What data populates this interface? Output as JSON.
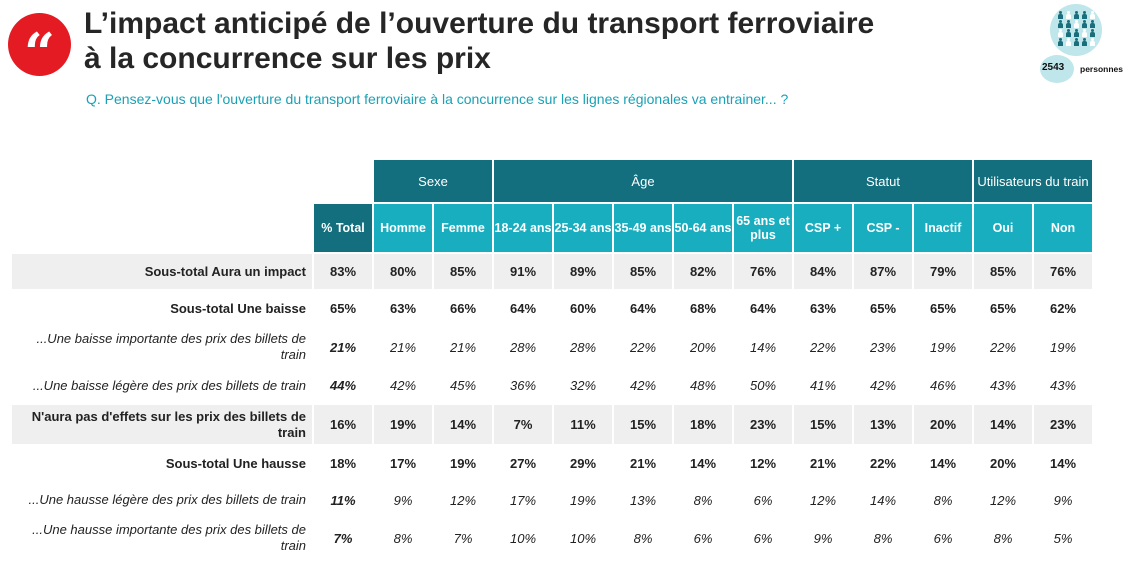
{
  "title_line1": "L’impact anticipé de l’ouverture du transport ferroviaire",
  "title_line2": "à la concurrence sur les prix",
  "subtitle": "Q. Pensez-vous que l'ouverture du transport ferroviaire à la concurrence sur les lignes régionales va entrainer... ?",
  "quote_glyph": "“",
  "respondents": {
    "count": "2543",
    "label": "personnes"
  },
  "colors": {
    "accent_red": "#e41b23",
    "dark_teal": "#136e7e",
    "light_teal": "#18aec0",
    "subtitle": "#1aa1b5",
    "row_shade": "#efefef"
  },
  "groups": [
    {
      "label": "Sexe",
      "span": 2
    },
    {
      "label": "Âge",
      "span": 5
    },
    {
      "label": "Statut",
      "span": 3
    },
    {
      "label": "Utilisateurs du train",
      "span": 2
    }
  ],
  "columns": [
    "% Total",
    "Homme",
    "Femme",
    "18-24 ans",
    "25-34 ans",
    "35-49 ans",
    "50-64 ans",
    "65 ans et plus",
    "CSP +",
    "CSP -",
    "Inactif",
    "Oui",
    "Non"
  ],
  "rows": [
    {
      "label": "Sous-total Aura un impact",
      "style": "bold",
      "shade": true,
      "values": [
        "83%",
        "80%",
        "85%",
        "91%",
        "89%",
        "85%",
        "82%",
        "76%",
        "84%",
        "87%",
        "79%",
        "85%",
        "76%"
      ]
    },
    {
      "label": "Sous-total Une baisse",
      "style": "bold",
      "shade": false,
      "values": [
        "65%",
        "63%",
        "66%",
        "64%",
        "60%",
        "64%",
        "68%",
        "64%",
        "63%",
        "65%",
        "65%",
        "65%",
        "62%"
      ]
    },
    {
      "label": "...Une baisse importante des prix des billets de train",
      "style": "ital",
      "shade": false,
      "values": [
        "21%",
        "21%",
        "21%",
        "28%",
        "28%",
        "22%",
        "20%",
        "14%",
        "22%",
        "23%",
        "19%",
        "22%",
        "19%"
      ]
    },
    {
      "label": "...Une baisse légère des prix des billets de train",
      "style": "ital",
      "shade": false,
      "values": [
        "44%",
        "42%",
        "45%",
        "36%",
        "32%",
        "42%",
        "48%",
        "50%",
        "41%",
        "42%",
        "46%",
        "43%",
        "43%"
      ]
    },
    {
      "label": "N'aura pas d'effets sur les prix des billets de train",
      "style": "bold",
      "shade": true,
      "values": [
        "16%",
        "19%",
        "14%",
        "7%",
        "11%",
        "15%",
        "18%",
        "23%",
        "15%",
        "13%",
        "20%",
        "14%",
        "23%"
      ]
    },
    {
      "label": "Sous-total Une hausse",
      "style": "bold",
      "shade": false,
      "values": [
        "18%",
        "17%",
        "19%",
        "27%",
        "29%",
        "21%",
        "14%",
        "12%",
        "21%",
        "22%",
        "14%",
        "20%",
        "14%"
      ]
    },
    {
      "label": "...Une hausse légère des prix des billets de train",
      "style": "ital",
      "shade": false,
      "values": [
        "11%",
        "9%",
        "12%",
        "17%",
        "19%",
        "13%",
        "8%",
        "6%",
        "12%",
        "14%",
        "8%",
        "12%",
        "9%"
      ]
    },
    {
      "label": "...Une hausse importante des prix des billets de train",
      "style": "ital",
      "shade": false,
      "values": [
        "7%",
        "8%",
        "7%",
        "10%",
        "10%",
        "8%",
        "6%",
        "6%",
        "9%",
        "8%",
        "6%",
        "8%",
        "5%"
      ]
    }
  ]
}
